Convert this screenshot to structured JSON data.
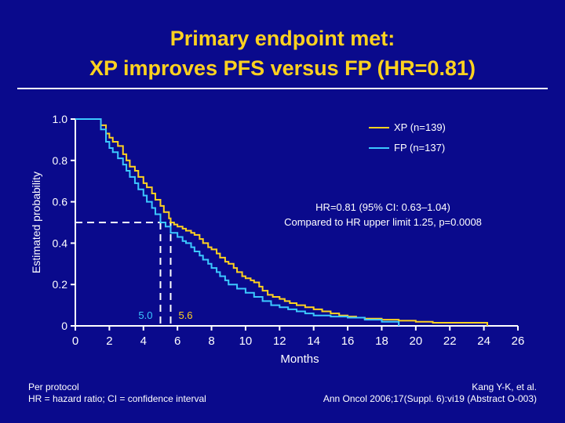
{
  "title": {
    "line1": "Primary endpoint met:",
    "line2": "XP improves PFS versus FP (HR=0.81)"
  },
  "footer": {
    "left_line1": "Per protocol",
    "left_line2": "HR = hazard ratio; CI = confidence interval",
    "right_line1": "Kang Y-K, et al.",
    "right_line2": "Ann Oncol 2006;17(Suppl. 6):vi19 (Abstract O-003)"
  },
  "chart_data": {
    "type": "line",
    "xlabel": "Months",
    "ylabel": "Estimated probability",
    "xlim": [
      0,
      26
    ],
    "ylim": [
      0,
      1
    ],
    "x_ticks": [
      "0",
      "2",
      "4",
      "6",
      "8",
      "10",
      "12",
      "14",
      "16",
      "18",
      "20",
      "22",
      "24",
      "26"
    ],
    "y_ticks": [
      "0",
      "0.2",
      "0.4",
      "0.6",
      "0.8",
      "1.0"
    ],
    "grid": false,
    "legend_position": "top-right",
    "colors": {
      "background": "#0a0a8c",
      "xp": "#ffd21f",
      "fp": "#3cc8ff",
      "text": "#ffffff",
      "title": "#ffd21f"
    },
    "series": [
      {
        "name": "XP (n=139)",
        "x": [
          0,
          1.3,
          1.5,
          1.8,
          2.0,
          2.2,
          2.5,
          2.8,
          3.0,
          3.2,
          3.5,
          3.7,
          4.0,
          4.2,
          4.5,
          4.7,
          5.0,
          5.2,
          5.5,
          5.6,
          5.8,
          6.0,
          6.3,
          6.5,
          6.8,
          7.0,
          7.3,
          7.5,
          7.8,
          8.0,
          8.3,
          8.5,
          8.8,
          9.0,
          9.3,
          9.5,
          9.8,
          10.0,
          10.3,
          10.5,
          10.8,
          11.0,
          11.3,
          11.6,
          12.0,
          12.3,
          12.6,
          13.0,
          13.5,
          14.0,
          14.5,
          15.0,
          15.5,
          16.0,
          16.5,
          17.0,
          18.0,
          19.0,
          20.0,
          21.0,
          22.0,
          23.0,
          24.0,
          24.2
        ],
        "values": [
          1.0,
          1.0,
          0.97,
          0.93,
          0.91,
          0.89,
          0.87,
          0.83,
          0.8,
          0.77,
          0.75,
          0.72,
          0.69,
          0.67,
          0.64,
          0.61,
          0.58,
          0.55,
          0.52,
          0.5,
          0.49,
          0.48,
          0.47,
          0.46,
          0.45,
          0.44,
          0.42,
          0.4,
          0.38,
          0.37,
          0.35,
          0.33,
          0.31,
          0.3,
          0.28,
          0.26,
          0.24,
          0.23,
          0.22,
          0.21,
          0.19,
          0.17,
          0.15,
          0.14,
          0.13,
          0.12,
          0.11,
          0.1,
          0.09,
          0.08,
          0.07,
          0.06,
          0.05,
          0.045,
          0.04,
          0.035,
          0.03,
          0.025,
          0.02,
          0.015,
          0.015,
          0.015,
          0.015,
          0.0
        ]
      },
      {
        "name": "FP (n=137)",
        "x": [
          0,
          1.3,
          1.5,
          1.8,
          2.0,
          2.2,
          2.5,
          2.8,
          3.0,
          3.2,
          3.5,
          3.7,
          4.0,
          4.2,
          4.5,
          4.7,
          5.0,
          5.3,
          5.6,
          6.0,
          6.3,
          6.5,
          6.8,
          7.0,
          7.3,
          7.5,
          7.8,
          8.0,
          8.3,
          8.5,
          8.8,
          9.0,
          9.5,
          10.0,
          10.5,
          11.0,
          11.5,
          12.0,
          12.5,
          13.0,
          13.5,
          14.0,
          15.0,
          16.0,
          17.0,
          18.0,
          19.0
        ],
        "values": [
          1.0,
          1.0,
          0.95,
          0.89,
          0.86,
          0.84,
          0.81,
          0.78,
          0.75,
          0.72,
          0.69,
          0.66,
          0.63,
          0.6,
          0.57,
          0.54,
          0.5,
          0.48,
          0.45,
          0.43,
          0.41,
          0.4,
          0.38,
          0.36,
          0.34,
          0.32,
          0.3,
          0.28,
          0.26,
          0.24,
          0.22,
          0.2,
          0.18,
          0.16,
          0.14,
          0.12,
          0.1,
          0.09,
          0.08,
          0.07,
          0.06,
          0.05,
          0.045,
          0.04,
          0.03,
          0.02,
          0.0
        ]
      }
    ],
    "medians": [
      {
        "label": "5.0",
        "x": 5.0,
        "y": 0.5
      },
      {
        "label": "5.6",
        "x": 5.6,
        "y": 0.5
      }
    ],
    "annotation": {
      "line1": "HR=0.81 (95% CI: 0.63–1.04)",
      "line2": "Compared to HR upper limit 1.25, p=0.0008"
    }
  }
}
